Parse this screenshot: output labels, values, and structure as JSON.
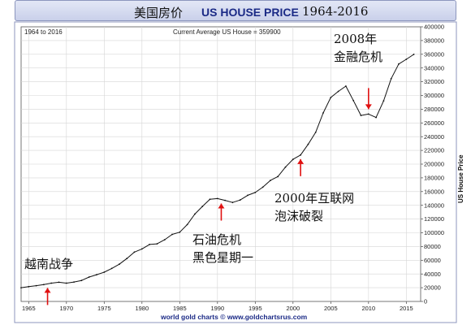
{
  "title": {
    "cn": "美国房价",
    "en": "US HOUSE PRICE",
    "years": "1964-2016"
  },
  "header": {
    "range": "1964 to 2016",
    "current": "Current Average US House = 359900"
  },
  "footer": "world gold charts © www.goldchartsrus.com",
  "annotations": [
    {
      "id": "vietnam",
      "lines": [
        "越南战争"
      ],
      "year": 1967.5
    },
    {
      "id": "oil",
      "lines": [
        "石油危机",
        "黑色星期一"
      ],
      "year": 1990.5
    },
    {
      "id": "dotcom",
      "lines": [
        "2000年互联网",
        "泡沫破裂"
      ],
      "year": 2001
    },
    {
      "id": "gfc",
      "lines": [
        "2008年",
        "金融危机"
      ],
      "year": 2010
    }
  ],
  "colors": {
    "line": "#111111",
    "arrow": "#e01010",
    "grid": "#d6d6d6",
    "title_band": "#c9d0ea",
    "footer_text": "#1b2a86"
  },
  "chart_data": {
    "type": "line",
    "title": "US HOUSE PRICE",
    "xlabel": "",
    "ylabel": "US House Price",
    "xlim": [
      1964,
      2016.9
    ],
    "ylim": [
      0,
      400000
    ],
    "grid": true,
    "x_ticks": [
      1965,
      1970,
      1975,
      1980,
      1985,
      1990,
      1995,
      2000,
      2005,
      2010,
      2015
    ],
    "y_ticks": [
      0,
      20000,
      40000,
      60000,
      80000,
      100000,
      120000,
      140000,
      160000,
      180000,
      200000,
      220000,
      240000,
      260000,
      280000,
      300000,
      320000,
      340000,
      360000,
      380000,
      400000
    ],
    "series": [
      {
        "x": [
          1964,
          1965,
          1966,
          1967,
          1968,
          1969,
          1970,
          1971,
          1972,
          1973,
          1974,
          1975,
          1976,
          1977,
          1978,
          1979,
          1980,
          1981,
          1982,
          1983,
          1984,
          1985,
          1986,
          1987,
          1988,
          1989,
          1990,
          1991,
          1992,
          1993,
          1994,
          1995,
          1996,
          1997,
          1998,
          1999,
          2000,
          2001,
          2002,
          2003,
          2004,
          2005,
          2006,
          2007,
          2008,
          2009,
          2010,
          2011,
          2012,
          2013,
          2014,
          2015,
          2016
        ],
        "values": [
          20000,
          21500,
          23000,
          24500,
          26600,
          27900,
          26600,
          28300,
          30500,
          35500,
          38900,
          42600,
          48000,
          54200,
          62500,
          71800,
          76400,
          83000,
          83900,
          89800,
          97600,
          100800,
          111900,
          127200,
          138300,
          148800,
          149800,
          147200,
          144100,
          147700,
          154500,
          158700,
          166400,
          176200,
          181900,
          195600,
          207000,
          213200,
          228700,
          246300,
          274500,
          297000,
          305900,
          313600,
          292600,
          270900,
          272900,
          267900,
          292200,
          324500,
          345800,
          352700,
          359900
        ]
      }
    ]
  }
}
